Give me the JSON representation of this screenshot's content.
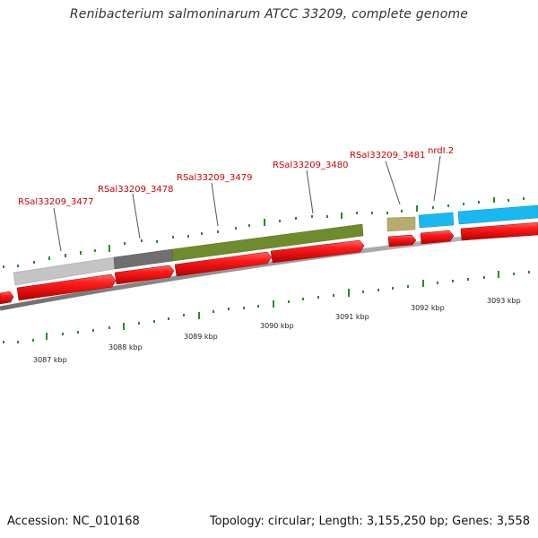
{
  "title": "Renibacterium salmoninarum ATCC 33209, complete genome",
  "footer": {
    "accession": "Accession: NC_010168",
    "summary": "Topology: circular; Length: 3,155,250 bp; Genes: 3,558"
  },
  "colors": {
    "cds": "#ee0000",
    "gene_light_gray": "#c4c4c4",
    "gene_dark_gray": "#6f6f6f",
    "gene_olive": "#6e8c2e",
    "gene_khaki": "#b5ac6e",
    "gene_cyan": "#18b8f0",
    "tick": "#2a8a2a",
    "label": "#cc0000",
    "backbone": "#8a8a8a"
  },
  "kbp_labels": [
    "3087 kbp",
    "3088 kbp",
    "3089 kbp",
    "3090 kbp",
    "3091 kbp",
    "3092 kbp",
    "3093 kbp"
  ],
  "gene_labels": [
    "RSal33209_3477",
    "RSal33209_3478",
    "RSal33209_3479",
    "RSal33209_3480",
    "RSal33209_3481",
    "nrdI.2"
  ]
}
